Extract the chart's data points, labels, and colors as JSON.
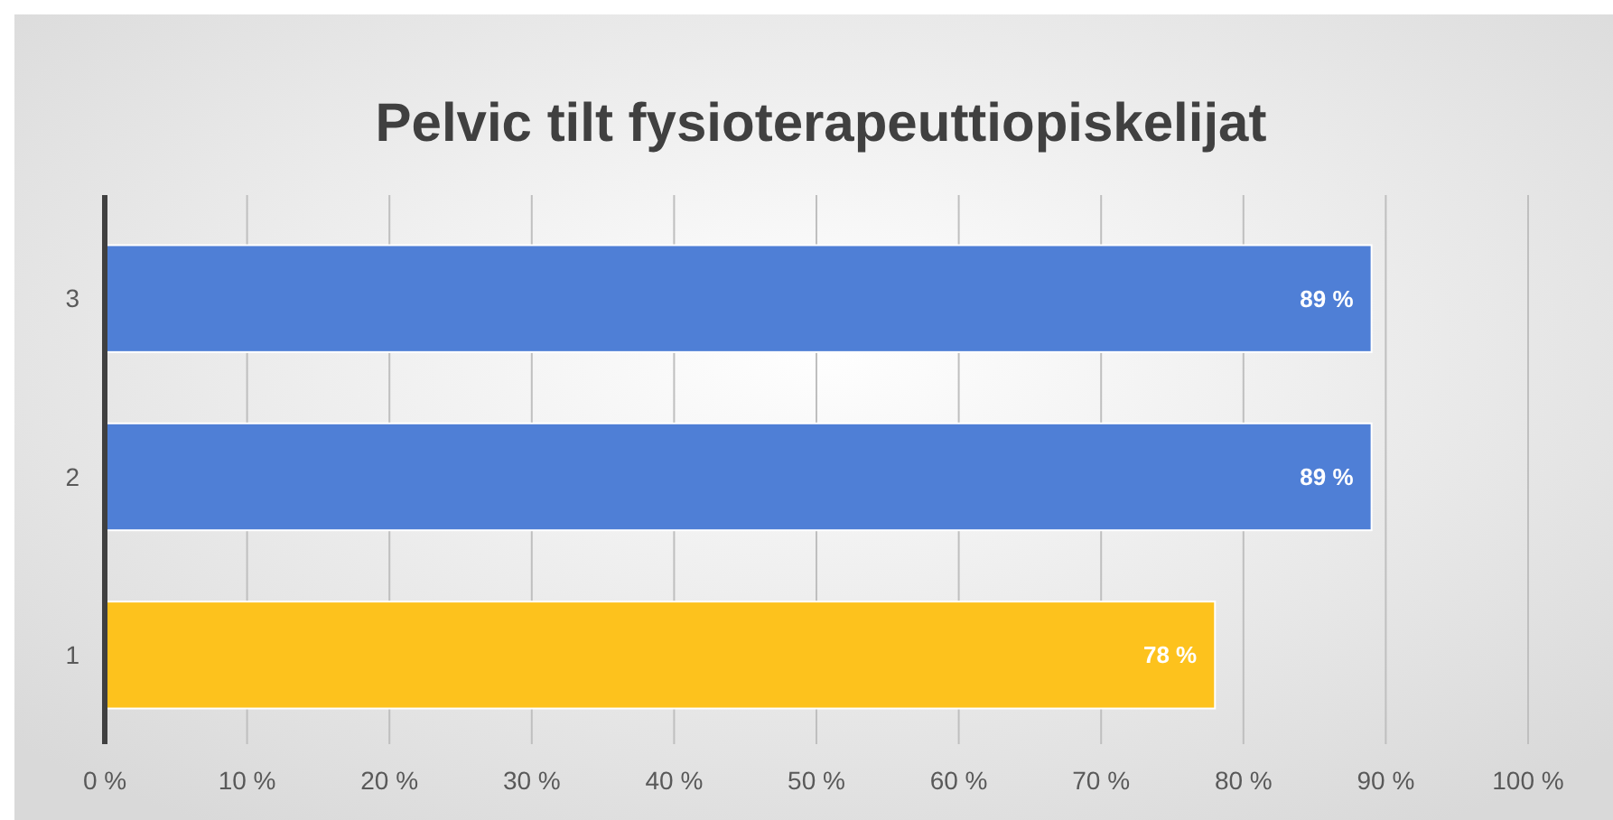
{
  "chart_data": {
    "type": "bar",
    "orientation": "horizontal",
    "title": "Pelvic tilt fysioterapeuttiopiskelijat",
    "categories": [
      "3",
      "2",
      "1"
    ],
    "values": [
      89,
      89,
      78
    ],
    "colors": [
      "#4f7fd6",
      "#4f7fd6",
      "#fdc21d"
    ],
    "value_labels": [
      "89 %",
      "89 %",
      "78 %"
    ],
    "xlim": [
      0,
      100
    ],
    "xticks": [
      {
        "value": 0,
        "label": "0 %"
      },
      {
        "value": 10,
        "label": "10 %"
      },
      {
        "value": 20,
        "label": "20 %"
      },
      {
        "value": 30,
        "label": "30 %"
      },
      {
        "value": 40,
        "label": "40 %"
      },
      {
        "value": 50,
        "label": "50 %"
      },
      {
        "value": 60,
        "label": "60 %"
      },
      {
        "value": 70,
        "label": "70 %"
      },
      {
        "value": 80,
        "label": "80 %"
      },
      {
        "value": 90,
        "label": "90 %"
      },
      {
        "value": 100,
        "label": "100 %"
      }
    ],
    "grid": "x"
  }
}
